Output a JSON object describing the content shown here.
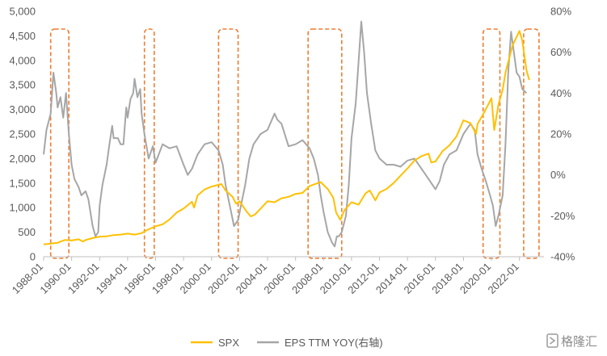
{
  "chart_data": {
    "type": "line",
    "title": "",
    "x_tick_labels": [
      "1988-01",
      "1990-01",
      "1992-01",
      "1994-01",
      "1996-01",
      "1998-01",
      "2000-01",
      "2002-01",
      "2004-01",
      "2006-01",
      "2008-01",
      "2010-01",
      "2012-01",
      "2014-01",
      "2016-01",
      "2018-01",
      "2020-01",
      "2022-01"
    ],
    "y_left": {
      "min": 0,
      "max": 5000,
      "ticks": [
        0,
        500,
        1000,
        1500,
        2000,
        2500,
        3000,
        3500,
        4000,
        4500,
        5000
      ],
      "tick_labels": [
        "0",
        "500",
        "1,000",
        "1,500",
        "2,000",
        "2,500",
        "3,000",
        "3,500",
        "4,000",
        "4,500",
        "5,000"
      ]
    },
    "y_right": {
      "min": -40,
      "max": 80,
      "ticks": [
        -40,
        -20,
        0,
        20,
        40,
        60,
        80
      ],
      "tick_labels": [
        "-40%",
        "-20%",
        "0%",
        "20%",
        "40%",
        "60%",
        "80%"
      ]
    },
    "grid": false,
    "legend_position": "bottom",
    "series": [
      {
        "name": "SPX",
        "axis": "left",
        "color": "#FFC000",
        "points": [
          [
            1988.0,
            250
          ],
          [
            1988.5,
            265
          ],
          [
            1989.0,
            285
          ],
          [
            1989.5,
            340
          ],
          [
            1990.0,
            330
          ],
          [
            1990.5,
            355
          ],
          [
            1990.8,
            310
          ],
          [
            1991.0,
            340
          ],
          [
            1991.5,
            380
          ],
          [
            1992.0,
            410
          ],
          [
            1992.5,
            415
          ],
          [
            1993.0,
            440
          ],
          [
            1993.5,
            450
          ],
          [
            1994.0,
            470
          ],
          [
            1994.5,
            450
          ],
          [
            1995.0,
            480
          ],
          [
            1995.5,
            560
          ],
          [
            1996.0,
            620
          ],
          [
            1996.5,
            660
          ],
          [
            1997.0,
            760
          ],
          [
            1997.5,
            900
          ],
          [
            1998.0,
            980
          ],
          [
            1998.6,
            1120
          ],
          [
            1998.75,
            1000
          ],
          [
            1999.0,
            1250
          ],
          [
            1999.5,
            1370
          ],
          [
            2000.0,
            1430
          ],
          [
            2000.7,
            1480
          ],
          [
            2001.0,
            1350
          ],
          [
            2001.5,
            1220
          ],
          [
            2001.75,
            1080
          ],
          [
            2002.0,
            1130
          ],
          [
            2002.5,
            920
          ],
          [
            2002.8,
            820
          ],
          [
            2003.1,
            860
          ],
          [
            2003.5,
            980
          ],
          [
            2004.0,
            1130
          ],
          [
            2004.5,
            1110
          ],
          [
            2005.0,
            1190
          ],
          [
            2005.5,
            1220
          ],
          [
            2006.0,
            1280
          ],
          [
            2006.5,
            1300
          ],
          [
            2007.0,
            1440
          ],
          [
            2007.8,
            1520
          ],
          [
            2008.3,
            1380
          ],
          [
            2008.7,
            1200
          ],
          [
            2008.9,
            900
          ],
          [
            2009.2,
            750
          ],
          [
            2009.5,
            950
          ],
          [
            2010.0,
            1110
          ],
          [
            2010.5,
            1060
          ],
          [
            2011.0,
            1290
          ],
          [
            2011.3,
            1350
          ],
          [
            2011.7,
            1150
          ],
          [
            2012.0,
            1310
          ],
          [
            2012.5,
            1380
          ],
          [
            2013.0,
            1500
          ],
          [
            2013.5,
            1650
          ],
          [
            2014.0,
            1800
          ],
          [
            2014.5,
            1960
          ],
          [
            2015.0,
            2050
          ],
          [
            2015.5,
            2100
          ],
          [
            2015.7,
            1920
          ],
          [
            2016.0,
            1940
          ],
          [
            2016.5,
            2150
          ],
          [
            2017.0,
            2270
          ],
          [
            2017.5,
            2450
          ],
          [
            2018.0,
            2780
          ],
          [
            2018.5,
            2720
          ],
          [
            2018.9,
            2500
          ],
          [
            2019.0,
            2700
          ],
          [
            2019.5,
            2950
          ],
          [
            2020.0,
            3230
          ],
          [
            2020.2,
            2580
          ],
          [
            2020.5,
            3100
          ],
          [
            2020.8,
            3400
          ],
          [
            2021.0,
            3750
          ],
          [
            2021.5,
            4300
          ],
          [
            2022.0,
            4600
          ],
          [
            2022.2,
            4400
          ],
          [
            2022.5,
            3800
          ],
          [
            2022.7,
            3600
          ]
        ]
      },
      {
        "name": "EPS TTM YOY(右轴)",
        "axis": "right",
        "color": "#A6A6A6",
        "points": [
          [
            1988.0,
            10
          ],
          [
            1988.2,
            22
          ],
          [
            1988.5,
            30
          ],
          [
            1988.7,
            50
          ],
          [
            1988.9,
            40
          ],
          [
            1989.0,
            33
          ],
          [
            1989.2,
            38
          ],
          [
            1989.4,
            28
          ],
          [
            1989.6,
            40
          ],
          [
            1989.8,
            20
          ],
          [
            1990.0,
            5
          ],
          [
            1990.2,
            -2
          ],
          [
            1990.5,
            -6
          ],
          [
            1990.7,
            -10
          ],
          [
            1991.0,
            -8
          ],
          [
            1991.2,
            -12
          ],
          [
            1991.5,
            -25
          ],
          [
            1991.7,
            -30
          ],
          [
            1991.9,
            -28
          ],
          [
            1992.0,
            -15
          ],
          [
            1992.2,
            -5
          ],
          [
            1992.5,
            5
          ],
          [
            1992.7,
            15
          ],
          [
            1992.9,
            24
          ],
          [
            1993.0,
            18
          ],
          [
            1993.3,
            18
          ],
          [
            1993.5,
            15
          ],
          [
            1993.7,
            15
          ],
          [
            1993.9,
            33
          ],
          [
            1994.0,
            28
          ],
          [
            1994.2,
            37
          ],
          [
            1994.4,
            40
          ],
          [
            1994.5,
            47
          ],
          [
            1994.7,
            38
          ],
          [
            1994.9,
            42
          ],
          [
            1995.0,
            30
          ],
          [
            1995.2,
            20
          ],
          [
            1995.5,
            8
          ],
          [
            1995.8,
            14
          ],
          [
            1996.0,
            6
          ],
          [
            1996.5,
            15
          ],
          [
            1997.0,
            13
          ],
          [
            1997.5,
            14
          ],
          [
            1998.0,
            5
          ],
          [
            1998.3,
            0
          ],
          [
            1998.6,
            3
          ],
          [
            1999.0,
            10
          ],
          [
            1999.5,
            15
          ],
          [
            2000.0,
            16
          ],
          [
            2000.5,
            12
          ],
          [
            2000.8,
            5
          ],
          [
            2001.0,
            -5
          ],
          [
            2001.3,
            -15
          ],
          [
            2001.6,
            -25
          ],
          [
            2001.9,
            -22
          ],
          [
            2002.1,
            -15
          ],
          [
            2002.4,
            -5
          ],
          [
            2002.7,
            8
          ],
          [
            2003.0,
            15
          ],
          [
            2003.5,
            20
          ],
          [
            2004.0,
            22
          ],
          [
            2004.5,
            30
          ],
          [
            2004.7,
            27
          ],
          [
            2005.0,
            25
          ],
          [
            2005.5,
            14
          ],
          [
            2006.0,
            15
          ],
          [
            2006.5,
            17
          ],
          [
            2007.0,
            13
          ],
          [
            2007.3,
            8
          ],
          [
            2007.6,
            0
          ],
          [
            2007.8,
            -10
          ],
          [
            2008.0,
            -18
          ],
          [
            2008.3,
            -28
          ],
          [
            2008.6,
            -33
          ],
          [
            2008.8,
            -35
          ],
          [
            2008.95,
            -30
          ],
          [
            2009.1,
            -30
          ],
          [
            2009.3,
            -28
          ],
          [
            2009.6,
            -20
          ],
          [
            2009.8,
            -5
          ],
          [
            2010.0,
            18
          ],
          [
            2010.3,
            35
          ],
          [
            2010.5,
            55
          ],
          [
            2010.7,
            75
          ],
          [
            2010.9,
            60
          ],
          [
            2011.1,
            40
          ],
          [
            2011.4,
            25
          ],
          [
            2011.7,
            12
          ],
          [
            2012.0,
            8
          ],
          [
            2012.5,
            5
          ],
          [
            2013.0,
            5
          ],
          [
            2013.5,
            4
          ],
          [
            2014.0,
            7
          ],
          [
            2014.5,
            8
          ],
          [
            2015.0,
            3
          ],
          [
            2015.5,
            -2
          ],
          [
            2015.8,
            -5
          ],
          [
            2016.0,
            -7
          ],
          [
            2016.3,
            -3
          ],
          [
            2016.6,
            5
          ],
          [
            2017.0,
            10
          ],
          [
            2017.5,
            12
          ],
          [
            2018.0,
            20
          ],
          [
            2018.5,
            25
          ],
          [
            2018.8,
            22
          ],
          [
            2019.0,
            10
          ],
          [
            2019.3,
            3
          ],
          [
            2019.6,
            -3
          ],
          [
            2019.9,
            -10
          ],
          [
            2020.1,
            -15
          ],
          [
            2020.3,
            -25
          ],
          [
            2020.5,
            -20
          ],
          [
            2020.8,
            -10
          ],
          [
            2021.0,
            15
          ],
          [
            2021.2,
            50
          ],
          [
            2021.4,
            70
          ],
          [
            2021.6,
            60
          ],
          [
            2021.8,
            50
          ],
          [
            2022.0,
            48
          ],
          [
            2022.2,
            42
          ],
          [
            2022.5,
            40
          ]
        ]
      }
    ],
    "highlight_ranges": [
      [
        1988.5,
        1989.8
      ],
      [
        1995.2,
        1995.9
      ],
      [
        2000.5,
        2001.9
      ],
      [
        2006.9,
        2009.3
      ],
      [
        2019.4,
        2020.6
      ],
      [
        2022.3,
        2023.4
      ]
    ],
    "legend": [
      {
        "label": "SPX",
        "color": "#FFC000"
      },
      {
        "label": "EPS TTM YOY(右轴)",
        "color": "#A6A6A6"
      }
    ]
  },
  "watermark": {
    "text": "格隆汇"
  },
  "colors": {
    "highlight": "#ED7D31",
    "axis": "#BFBFBF",
    "text": "#595959"
  }
}
